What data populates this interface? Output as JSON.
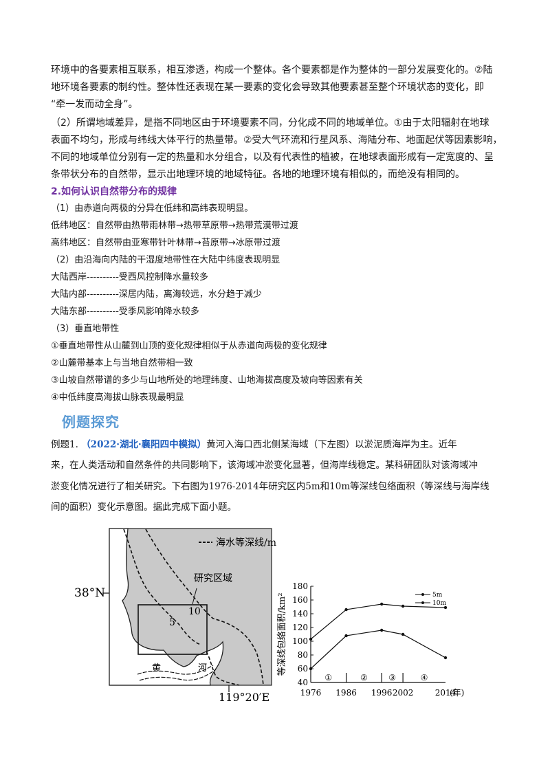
{
  "text": {
    "line1": "环境中的各要素相互联系，相互渗透，构成一个整体。各个要素都是作为整体的一部分发展变化的。②陆",
    "line2": "地环境各要素的制约性。整体性还表现在某一要素的变化会导致其他要素甚至整个环境状态的变化，即",
    "line3": "“牵一发而动全身”。",
    "line4": "（2）所谓地域差异，是指不同地区由于环境要素不同，分化成不同的地域单位。①由于太阳辐射在地球",
    "line5": "表面不均匀，形成与纬线大体平行的热量带。②受大气环流和行星风系、海陆分布、地面起伏等因素影响，",
    "line6": "不同的地域单位分别有一定的热量和水分组合，以及有代表性的植被，在地球表面形成有一定宽度的、呈",
    "line7": "条带状分布的自然带，显示出地理环境的地域特征。各地的地理环境有相似的，而绝没有相同的。",
    "heading2": "2.如何认识自然带分布的规律",
    "l_h1": "（1）由赤道向两极的分异在低纬和高纬表现明显。",
    "l_low": "低纬地区：自然带由热带雨林带→热带草原带→热带荒漠带过渡",
    "l_high": "高纬地区：自然带由亚寒带针叶林带→苔原带→冰原带过渡",
    "l_h2": "（2）由沿海向内陆的干湿度地带性在大陆中纬度表现明显",
    "l_west": "大陆西岸----------受西风控制降水量较多",
    "l_inner": "大陆内部----------深居内陆，离海较远，水分趋于减少",
    "l_east": "大陆东部----------受季风影响降水较多",
    "l_h3": "（3）垂直地带性",
    "l_v1": "①垂直地带性从山麓到山顶的变化规律相似于从赤道向两极的变化规律",
    "l_v2": "②山麓带基本上与当地自然带相一致",
    "l_v3": "③山坡自然带谱的多少与山地所处的地理纬度、山地海拔高度及坡向等因素有关",
    "l_v4": "④中低纬度高海拔山脉表现最明显",
    "section_title": "例题探究",
    "ex_prefix": "例题1.",
    "ex_source": "（2022·湖北·襄阳四中模拟）",
    "ex_line1_rest": "黄河入海口西北侧某海域（下左图）以淤泥质海岸为主。近年",
    "ex_line2": "来，在人类活动和自然条件的共同影响下，该海域冲淤变化显著，但海岸线稳定。某科研团队对该海域冲",
    "ex_line3": "淤变化情况进行了相关研究。下右图为1976-2014年研究区内5m和10m等深线包络面积（等深线与海岸线",
    "ex_line4": "间的面积）变化示意图。据此完成下面小题。"
  },
  "map": {
    "legend": "海水等深线/m",
    "region_label": "研究区域",
    "lat_label": "38°N",
    "lon_label": "119°20′E",
    "depth5": "5",
    "depth10": "10",
    "river_char1": "黄",
    "river_char2": "河",
    "sea_color": "#c9c9c9"
  },
  "chart_data": {
    "type": "line",
    "ylabel": "等深线包络面积/km²",
    "xlabel_unit": "(年)",
    "ylim": [
      40,
      180
    ],
    "yticks": [
      40,
      60,
      80,
      100,
      120,
      140,
      160,
      180
    ],
    "xticks": [
      1976,
      1986,
      1996,
      2002,
      2014
    ],
    "period_labels": [
      "①",
      "②",
      "③",
      "④"
    ],
    "series": [
      {
        "name": "5m",
        "x": [
          1976,
          1986,
          1996,
          2002,
          2014
        ],
        "values": [
          60,
          108,
          116,
          110,
          76
        ]
      },
      {
        "name": "10m",
        "x": [
          1976,
          1986,
          1996,
          2002,
          2014
        ],
        "values": [
          103,
          146,
          154,
          151,
          149
        ]
      }
    ]
  }
}
